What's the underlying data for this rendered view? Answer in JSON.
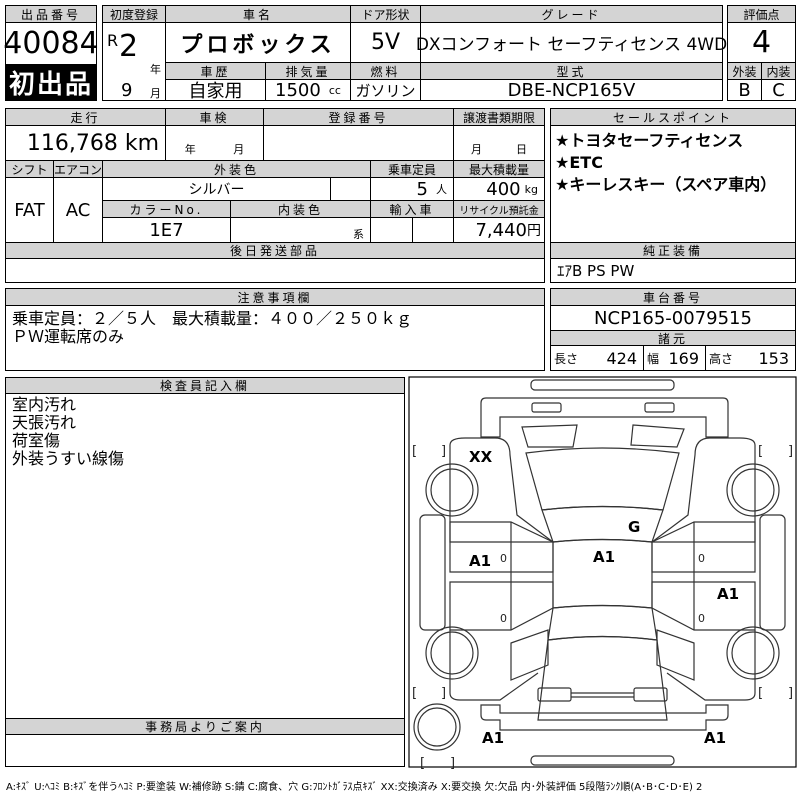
{
  "header": {
    "lot_number_label": "出品番号",
    "lot_number": "40084",
    "first_listing": "初出品",
    "first_reg_label": "初度登録",
    "era": "R",
    "year": "2",
    "year_unit": "年",
    "month": "9",
    "month_unit": "月",
    "car_name_label": "車名",
    "car_name": "プロボックス",
    "door_label": "ドア形状",
    "door": "5V",
    "grade_label": "グレード",
    "grade": "DXコンフォート セーフティセンス 4WD",
    "history_label": "車歴",
    "history": "自家用",
    "displacement_label": "排気量",
    "displacement": "1500",
    "displacement_unit": "cc",
    "fuel_label": "燃料",
    "fuel": "ガソリン",
    "model_label": "型式",
    "model": "DBE-NCP165V",
    "score_label": "評価点",
    "score": "4",
    "exterior_label": "外装",
    "exterior": "B",
    "interior_label": "内装",
    "interior": "C"
  },
  "details": {
    "mileage_label": "走行",
    "mileage": "116,768 km",
    "inspection_label": "車検",
    "inspection_year_unit": "年",
    "inspection_month_unit": "月",
    "reg_number_label": "登録番号",
    "transfer_label": "譲渡書類期限",
    "transfer_month_unit": "月",
    "transfer_day_unit": "日",
    "shift_label": "シフト",
    "shift": "FAT",
    "ac_label": "エアコン",
    "ac": "AC",
    "color_label": "外装色",
    "color": "シルバー",
    "capacity_label": "乗車定員",
    "capacity": "5",
    "capacity_unit": "人",
    "load_label": "最大積載量",
    "load": "400",
    "load_unit": "kg",
    "color_no_label": "カラーNo.",
    "color_no": "1E7",
    "interior_color_label": "内装色",
    "interior_color_unit": "系",
    "import_label": "輸入車",
    "recycle_label": "リサイクル預託金",
    "recycle": "7,440",
    "recycle_unit": "円",
    "later_parts_label": "後日発送部品"
  },
  "sales_points": {
    "label": "セールスポイント",
    "items": [
      "★トヨタセーフティセンス",
      "★ETC",
      "★キーレスキー（スペア車内）"
    ]
  },
  "equipment": {
    "label": "純正装備",
    "value": "ｴｱB PS PW"
  },
  "cautions": {
    "label": "注意事項欄",
    "text": "乗車定員：２／５人　最大積載量：４００／２５０ｋｇ\nＰＷ運転席のみ"
  },
  "chassis": {
    "label": "車台番号",
    "value": "NCP165-0079515",
    "spec_label": "諸元",
    "length_label": "長さ",
    "length": "424",
    "width_label": "幅",
    "width": "169",
    "height_label": "高さ",
    "height": "153"
  },
  "inspector": {
    "label": "検査員記入欄",
    "text": "室内汚れ\n天張汚れ\n荷室傷\n外装うすい線傷"
  },
  "office": {
    "label": "事務局よりご案内"
  },
  "diagram": {
    "marks": [
      "XX",
      "G",
      "A1",
      "A1",
      "A1",
      "A1",
      "A1"
    ]
  },
  "legend": "A:ｷｽﾞ U:ﾍｺﾐ B:ｷｽﾞを伴うﾍｺﾐ P:要塗装 W:補修跡 S:錆 C:腐食、穴 G:ﾌﾛﾝﾄｶﾞﾗｽ点ｷｽﾞ XX:交換済み X:要交換 欠:欠品 内･外装評価 5段階ﾗﾝｸ順(A･B･C･D･E) 2"
}
